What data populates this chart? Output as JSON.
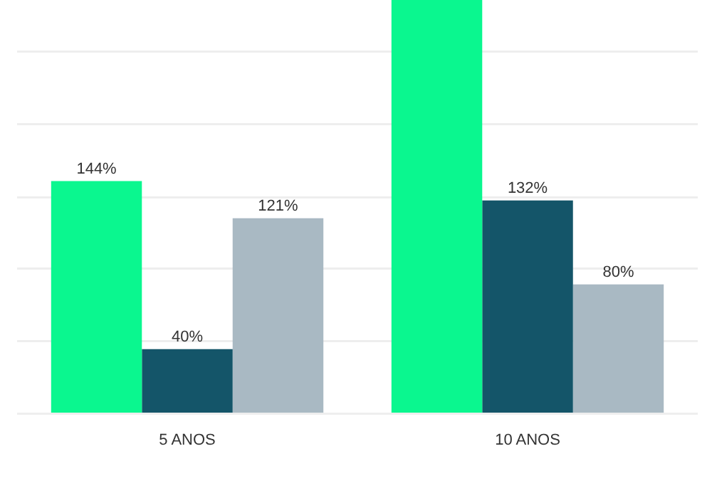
{
  "chart_data": {
    "type": "bar",
    "categories": [
      "5 ANOS",
      "10 ANOS"
    ],
    "series": [
      {
        "color": "#0af78f",
        "values": [
          144,
          256
        ],
        "value_labels": [
          "144%",
          null
        ]
      },
      {
        "color": "#145569",
        "values": [
          40,
          132
        ],
        "value_labels": [
          "40%",
          "132%"
        ]
      },
      {
        "color": "#a9b9c3",
        "values": [
          121,
          80
        ],
        "value_labels": [
          "121%",
          "80%"
        ]
      }
    ],
    "ylim": [
      0,
      256
    ],
    "yticks": [
      {
        "value": 0,
        "label": null
      },
      {
        "value": 45,
        "label": null
      },
      {
        "value": 90,
        "label": null
      },
      {
        "value": 134,
        "label": null
      },
      {
        "value": 179,
        "label": null
      },
      {
        "value": 224,
        "label": null
      }
    ],
    "grid": "y",
    "legend": false,
    "tick_labels": "x"
  }
}
